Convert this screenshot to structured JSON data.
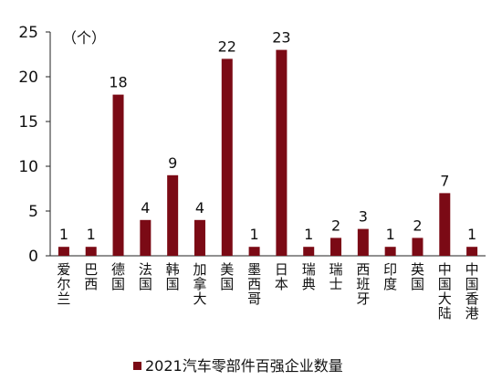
{
  "chart_data": {
    "type": "bar",
    "unit_label": "（个）",
    "categories": [
      "爱尔兰",
      "巴西",
      "德国",
      "法国",
      "韩国",
      "加拿大",
      "美国",
      "墨西哥",
      "日本",
      "瑞典",
      "瑞士",
      "西班牙",
      "印度",
      "英国",
      "中国大陆",
      "中国香港"
    ],
    "series": [
      {
        "name": "2021汽车零部件百强企业数量",
        "values": [
          1,
          1,
          18,
          4,
          9,
          4,
          22,
          1,
          23,
          1,
          2,
          3,
          1,
          2,
          7,
          1
        ],
        "color": "#7b0a15"
      }
    ],
    "ylim": [
      0,
      25
    ],
    "yticks": [
      0,
      5,
      10,
      15,
      20,
      25
    ],
    "grid": false,
    "legend": "bottom"
  }
}
